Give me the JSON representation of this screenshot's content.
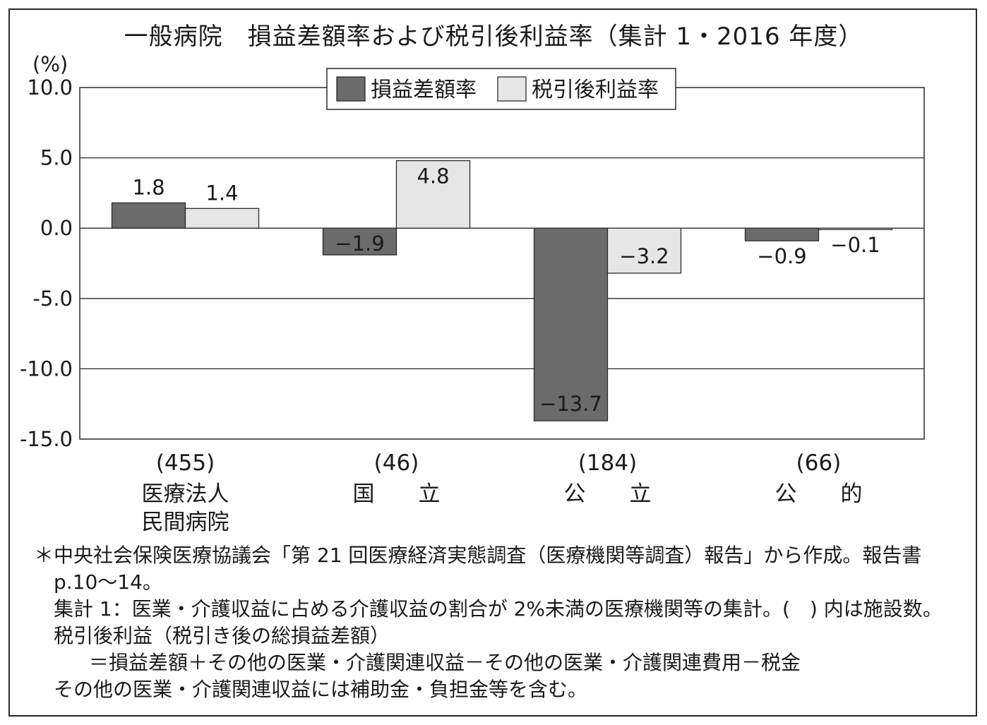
{
  "chart_data": {
    "type": "bar",
    "title": "一般病院　損益差額率および税引後利益率（集計 1・2016 年度）",
    "ylabel": "(%)",
    "ylim": [
      -15.0,
      10.0
    ],
    "yticks": [
      10.0,
      5.0,
      0.0,
      -5.0,
      -10.0,
      -15.0
    ],
    "ytick_labels": [
      "10.0",
      "5.0",
      "0.0",
      "-5.0",
      "-10.0",
      "-15.0"
    ],
    "grid": true,
    "legend_position": "top-center",
    "categories": [
      {
        "count": "(455)",
        "name_lines": [
          "医療法人",
          "民間病院"
        ]
      },
      {
        "count": "(46)",
        "name_lines": [
          "国　　立"
        ]
      },
      {
        "count": "(184)",
        "name_lines": [
          "公　　立"
        ]
      },
      {
        "count": "(66)",
        "name_lines": [
          "公　　的"
        ]
      }
    ],
    "series": [
      {
        "name": "損益差額率",
        "color": "#6b6b6b",
        "values": [
          1.8,
          -1.9,
          -13.7,
          -0.9
        ],
        "labels": [
          "1.8",
          "−1.9",
          "−13.7",
          "−0.9"
        ]
      },
      {
        "name": "税引後利益率",
        "color": "#e6e6e6",
        "values": [
          1.4,
          4.8,
          -3.2,
          -0.1
        ],
        "labels": [
          "1.4",
          "4.8",
          "−3.2",
          "−0.1"
        ]
      }
    ]
  },
  "notes": [
    "＊中央社会保険医療協議会「第 21 回医療経済実態調査（医療機関等調査）報告」から作成。報告書",
    "p.10〜14。",
    "集計 1：医業・介護収益に占める介護収益の割合が 2%未満の医療機関等の集計。(　) 内は施設数。",
    "税引後利益（税引き後の総損益差額）",
    "＝損益差額＋その他の医業・介護関連収益－その他の医業・介護関連費用－税金",
    "その他の医業・介護関連収益には補助金・負担金等を含む。"
  ]
}
